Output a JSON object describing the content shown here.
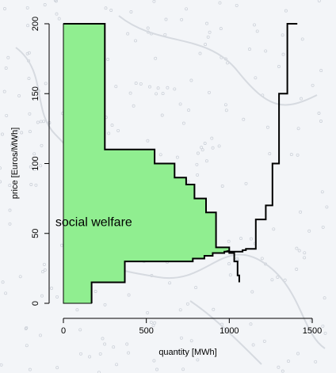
{
  "chart_data": {
    "type": "line",
    "title": "",
    "xlabel": "quantity [MWh]",
    "ylabel": "price [Euros/MWh]",
    "xlim": [
      -80,
      1500
    ],
    "ylim": [
      -5,
      200
    ],
    "grid": false,
    "x_ticks": [
      0,
      500,
      1000,
      1500
    ],
    "y_ticks": [
      0,
      50,
      100,
      150,
      200
    ],
    "series": [
      {
        "role": "demand",
        "style": "step",
        "color": "#000000",
        "points": [
          [
            0,
            200
          ],
          [
            250,
            200
          ],
          [
            250,
            110
          ],
          [
            550,
            110
          ],
          [
            550,
            100
          ],
          [
            670,
            100
          ],
          [
            670,
            90
          ],
          [
            740,
            90
          ],
          [
            740,
            85
          ],
          [
            790,
            85
          ],
          [
            790,
            75
          ],
          [
            860,
            75
          ],
          [
            860,
            65
          ],
          [
            920,
            65
          ],
          [
            920,
            40
          ],
          [
            1000,
            40
          ],
          [
            1000,
            36
          ],
          [
            1030,
            36
          ],
          [
            1030,
            30
          ],
          [
            1050,
            30
          ],
          [
            1050,
            20
          ],
          [
            1060,
            20
          ],
          [
            1060,
            15
          ]
        ]
      },
      {
        "role": "supply",
        "style": "step",
        "color": "#000000",
        "points": [
          [
            170,
            0
          ],
          [
            170,
            15
          ],
          [
            370,
            15
          ],
          [
            370,
            30
          ],
          [
            780,
            30
          ],
          [
            780,
            32
          ],
          [
            850,
            32
          ],
          [
            850,
            34
          ],
          [
            900,
            34
          ],
          [
            900,
            36
          ],
          [
            970,
            36
          ],
          [
            970,
            37
          ],
          [
            1080,
            37
          ],
          [
            1080,
            38
          ],
          [
            1100,
            38
          ],
          [
            1100,
            39
          ],
          [
            1160,
            39
          ],
          [
            1160,
            60
          ],
          [
            1220,
            60
          ],
          [
            1220,
            70
          ],
          [
            1260,
            70
          ],
          [
            1260,
            100
          ],
          [
            1300,
            100
          ],
          [
            1300,
            150
          ],
          [
            1350,
            150
          ],
          [
            1350,
            200
          ],
          [
            1410,
            200
          ]
        ]
      }
    ],
    "fill": {
      "label": "social welfare",
      "color": "#90EE90"
    },
    "annotations": [
      {
        "text": "social welfare",
        "x": 200,
        "y": 58
      }
    ]
  }
}
